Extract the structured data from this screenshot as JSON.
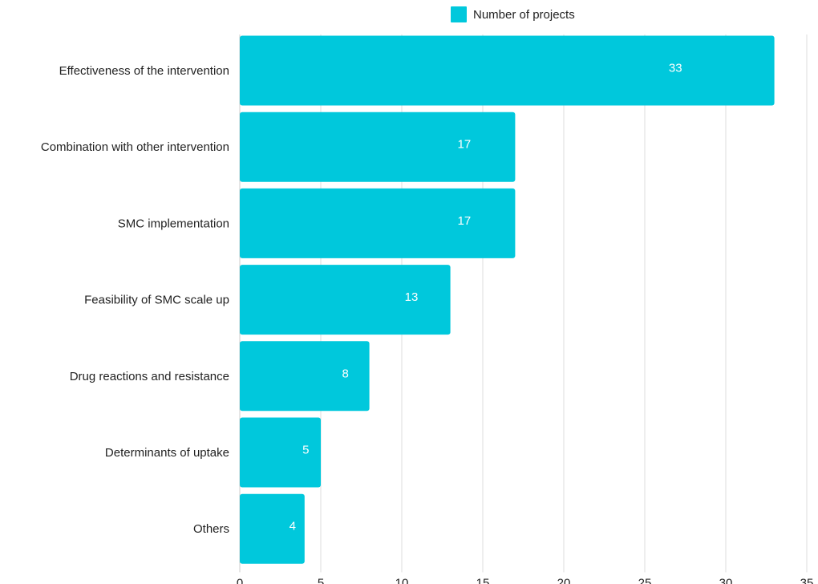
{
  "chart_data": {
    "type": "bar",
    "orientation": "horizontal",
    "categories": [
      "Effectiveness of the intervention",
      "Combination with other intervention",
      "SMC implementation",
      "Feasibility of SMC scale up",
      "Drug reactions and resistance",
      "Determinants of uptake",
      "Others"
    ],
    "series": [
      {
        "name": "Number of projects",
        "values": [
          33,
          17,
          17,
          13,
          8,
          5,
          4
        ],
        "color": "#00C8DC"
      }
    ],
    "xlim": [
      0,
      35
    ],
    "xticks": [
      0,
      5,
      10,
      15,
      20,
      25,
      30,
      35
    ],
    "grid": true,
    "legend_position": "top",
    "data_labels": true
  },
  "colors": {
    "bar": "#00C8DC",
    "grid": "#dddddd",
    "text": "#222222",
    "data_label": "#ffffff"
  }
}
